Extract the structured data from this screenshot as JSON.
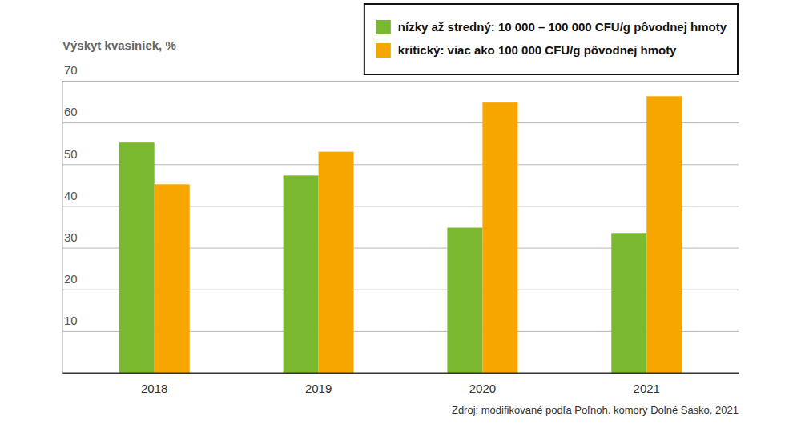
{
  "chart_data": {
    "type": "bar",
    "y_label": "Výskyt kvasiniek, %",
    "categories": [
      "2018",
      "2019",
      "2020",
      "2021"
    ],
    "series": [
      {
        "name": "nízky až stredný: 10 000 – 100 000 CFU/g pôvodnej hmoty",
        "color": "#7ab82f",
        "values": [
          55.2,
          47.3,
          34.8,
          33.5
        ]
      },
      {
        "name": "kritický: viac ako 100 000 CFU/g pôvodnej hmoty",
        "color": "#f7a600",
        "values": [
          45.2,
          53.0,
          64.8,
          66.3
        ]
      }
    ],
    "ylim": [
      0,
      70
    ],
    "yticks": [
      10,
      20,
      30,
      40,
      50,
      60,
      70
    ],
    "grid": true,
    "legend": "top-right",
    "source": "Zdroj: modifikované podľa Poľnoh. komory Dolné Sasko, 2021"
  }
}
